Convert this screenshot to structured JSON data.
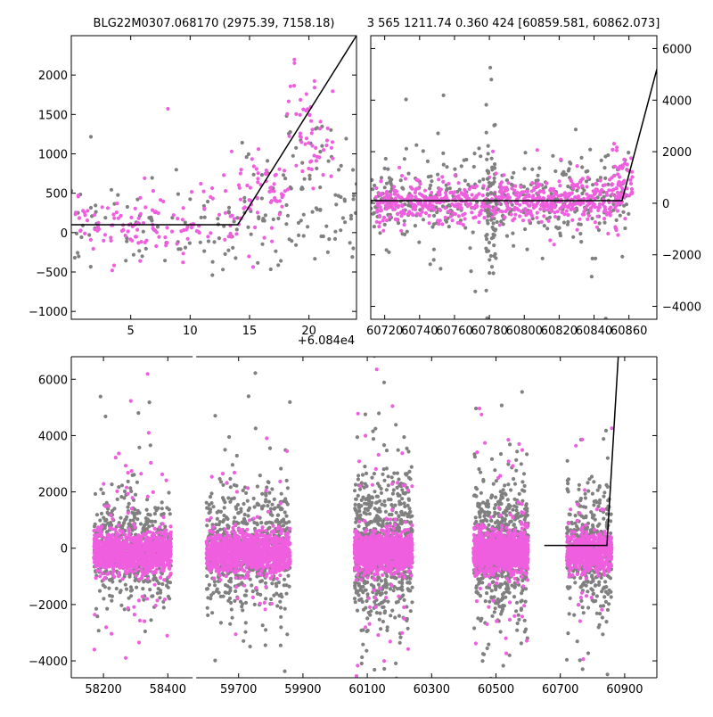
{
  "colors": {
    "gray": "#808080",
    "magenta": "#f05ee0",
    "model": "#000000"
  },
  "chart_data": [
    {
      "id": "zoom",
      "type": "scatter",
      "title": "BLG22M0307.068170 (2975.39, 7158.18)",
      "xlim": [
        0,
        24
      ],
      "ylim": [
        -1100,
        2500
      ],
      "x_ticks": [
        5,
        10,
        15,
        20
      ],
      "y_ticks": [
        -1000,
        -500,
        0,
        500,
        1000,
        1500,
        2000
      ],
      "x_offset_label": "+6.084e4",
      "y_axis_side": "left",
      "model_line": {
        "x": [
          0,
          14,
          24
        ],
        "y": [
          100,
          100,
          2500
        ]
      },
      "scatter_seed": 11,
      "clusters": [
        {
          "series": 0,
          "n": 150,
          "x": [
            0,
            24
          ],
          "center": 150,
          "spread": 500
        },
        {
          "series": 0,
          "n": 40,
          "x": [
            14,
            24
          ],
          "center": 900,
          "spread": 700
        },
        {
          "series": 1,
          "n": 130,
          "x": [
            0,
            14
          ],
          "center": 110,
          "spread": 320
        },
        {
          "series": 1,
          "n": 60,
          "x": [
            14,
            18
          ],
          "center": 500,
          "spread": 350
        },
        {
          "series": 1,
          "n": 55,
          "x": [
            18,
            22
          ],
          "center": 1300,
          "spread": 600
        }
      ]
    },
    {
      "id": "medium",
      "type": "scatter",
      "title": "3 565 1211.74 0.360 424 [60859.581, 60862.073]",
      "xlim": [
        60712,
        60876
      ],
      "ylim": [
        -4500,
        6500
      ],
      "x_ticks": [
        60720,
        60740,
        60760,
        60780,
        60800,
        60820,
        60840,
        60860
      ],
      "y_ticks": [
        -4000,
        -2000,
        0,
        2000,
        4000,
        6000
      ],
      "y_axis_side": "right",
      "model_line": {
        "x": [
          60712,
          60856,
          60876
        ],
        "y": [
          100,
          100,
          5200
        ]
      },
      "scatter_seed": 23,
      "clusters": [
        {
          "series": 0,
          "n": 420,
          "x": [
            60712,
            60860
          ],
          "center": 200,
          "spread": 1300
        },
        {
          "series": 1,
          "n": 650,
          "x": [
            60715,
            60858
          ],
          "center": 100,
          "spread": 650
        },
        {
          "series": 0,
          "n": 60,
          "x": [
            60778,
            60784
          ],
          "center": 0,
          "spread": 2600
        },
        {
          "series": 1,
          "n": 45,
          "x": [
            60850,
            60862
          ],
          "center": 1200,
          "spread": 900
        }
      ]
    },
    {
      "id": "full",
      "type": "scatter",
      "xlim": [
        58100,
        61000
      ],
      "x_axis_break": {
        "from": 58480,
        "to": 59560,
        "gap_at": 58480
      },
      "ylim": [
        -4600,
        6800
      ],
      "x_ticks": [
        58200,
        58400,
        59700,
        59900,
        60100,
        60300,
        60500,
        60700,
        60900
      ],
      "y_ticks": [
        -4000,
        -2000,
        0,
        2000,
        4000,
        6000
      ],
      "y_axis_side": "left",
      "model_line": {
        "x": [
          60650,
          60845,
          60880
        ],
        "y": [
          100,
          100,
          6800
        ]
      },
      "scatter_seed": 47,
      "seasons": [
        {
          "x": [
            58170,
            58410
          ],
          "gray_n": 520,
          "pink_n": 1100,
          "spread": 900
        },
        {
          "x": [
            59600,
            59860
          ],
          "gray_n": 620,
          "pink_n": 1100,
          "spread": 1100
        },
        {
          "x": [
            60060,
            60240
          ],
          "gray_n": 720,
          "pink_n": 1100,
          "spread": 1300
        },
        {
          "x": [
            60430,
            60600
          ],
          "gray_n": 660,
          "pink_n": 1050,
          "spread": 1200
        },
        {
          "x": [
            60720,
            60860
          ],
          "gray_n": 380,
          "pink_n": 600,
          "spread": 1100
        }
      ]
    }
  ]
}
